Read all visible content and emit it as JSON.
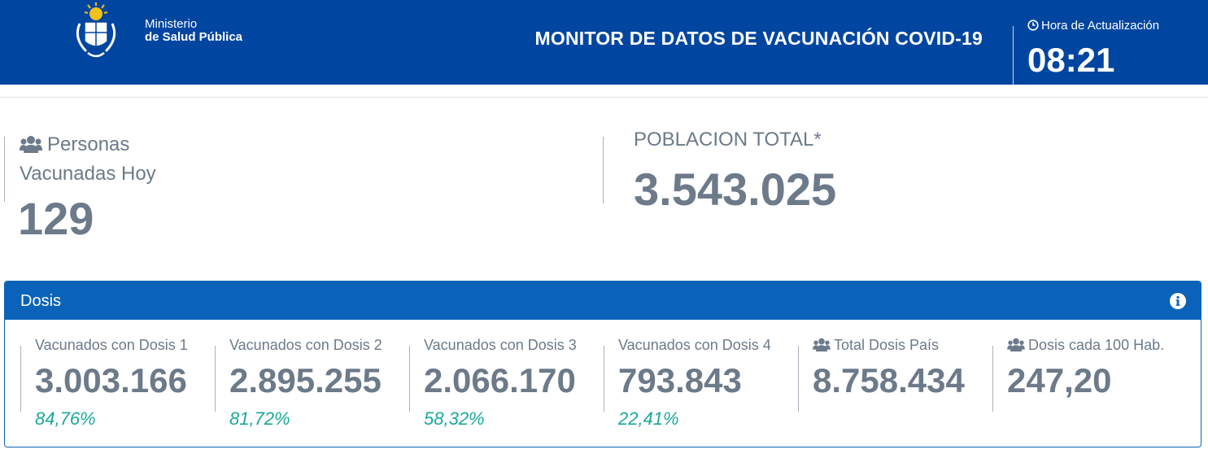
{
  "header": {
    "ministry_line1": "Ministerio",
    "ministry_line2": "de Salud Pública",
    "title": "MONITOR DE DATOS DE VACUNACIÓN COVID-19",
    "update_label": "Hora de Actualización",
    "update_time": "08:21"
  },
  "today": {
    "label_line1": "Personas",
    "label_line2": "Vacunadas Hoy",
    "value": "129",
    "icon": "users-icon"
  },
  "population": {
    "label": "POBLACION TOTAL*",
    "value": "3.543.025"
  },
  "doses_panel": {
    "title": "Dosis",
    "info_icon": "info-icon",
    "metrics": [
      {
        "label": "Vacunados con Dosis 1",
        "value": "3.003.166",
        "pct": "84,76%"
      },
      {
        "label": "Vacunados con Dosis 2",
        "value": "2.895.255",
        "pct": "81,72%"
      },
      {
        "label": "Vacunados con Dosis 3",
        "value": "2.066.170",
        "pct": "58,32%"
      },
      {
        "label": "Vacunados con Dosis 4",
        "value": "793.843",
        "pct": "22,41%"
      },
      {
        "label": "Total Dosis País",
        "value": "8.758.434",
        "icon": "users-icon"
      },
      {
        "label": "Dosis cada 100 Hab.",
        "value": "247,20",
        "icon": "users-icon"
      }
    ]
  },
  "colors": {
    "header_bg": "#0046a0",
    "panel_blue": "#0a63b8",
    "text_grey": "#6c7a89",
    "pct_green": "#1aa89a"
  }
}
